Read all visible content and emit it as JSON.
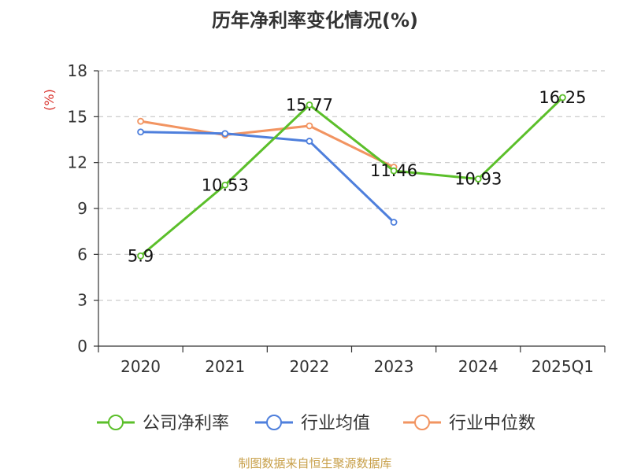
{
  "chart_data": {
    "type": "line",
    "title": "历年净利率变化情况(%)",
    "ylabel": "(%)",
    "categories": [
      "2020",
      "2021",
      "2022",
      "2023",
      "2024",
      "2025Q1"
    ],
    "ylim": [
      0,
      18
    ],
    "yticks": [
      0,
      3,
      6,
      9,
      12,
      15,
      18
    ],
    "grid": true,
    "legend_position": "bottom",
    "series": [
      {
        "name": "公司净利率",
        "color": "#5bbf2a",
        "values": [
          5.9,
          10.53,
          15.77,
          11.46,
          10.93,
          16.25
        ],
        "labels": [
          "5.9",
          "10.53",
          "15.77",
          "11.46",
          "10.93",
          "16.25"
        ]
      },
      {
        "name": "行业均值",
        "color": "#4e7fdc",
        "values": [
          14.0,
          13.9,
          13.4,
          8.1,
          null,
          null
        ]
      },
      {
        "name": "行业中位数",
        "color": "#f29461",
        "values": [
          14.7,
          13.8,
          14.4,
          11.7,
          null,
          null
        ]
      }
    ]
  },
  "footer": {
    "source": "制图数据来自恒生聚源数据库"
  }
}
